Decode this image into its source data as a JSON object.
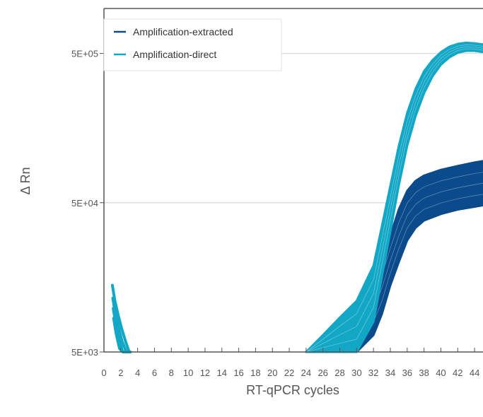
{
  "chart_data": {
    "type": "line",
    "title": "",
    "xlabel": "RT-qPCR cycles",
    "ylabel": "Δ Rn",
    "x_ticks": [
      0,
      2,
      4,
      6,
      8,
      10,
      12,
      14,
      16,
      18,
      20,
      22,
      24,
      26,
      28,
      30,
      32,
      34,
      36,
      38,
      40,
      42,
      44
    ],
    "x_tick_labels": [
      "0",
      "2",
      "4",
      "6",
      "8",
      "10",
      "12",
      "14",
      "16",
      "18",
      "20",
      "22",
      "24",
      "26",
      "28",
      "30",
      "32",
      "34",
      "36",
      "38",
      "40",
      "42",
      "44"
    ],
    "xlim": [
      0,
      45
    ],
    "y_scale": "log",
    "y_ticks": [
      5000,
      50000,
      500000
    ],
    "y_tick_labels": [
      "5E+03",
      "5E+04",
      "5E+05"
    ],
    "ylim": [
      5000,
      1000000
    ],
    "grid": "horizontal",
    "legend_position": "top-left",
    "series": [
      {
        "name": "Amplification-extracted",
        "color": "#0b4a8b",
        "x": [
          24,
          26,
          28,
          30,
          32,
          33,
          34,
          35,
          36,
          37,
          38,
          40,
          42,
          44,
          45
        ],
        "y_low": [
          5000,
          5000,
          5000,
          5000,
          6500,
          9000,
          14000,
          20000,
          28000,
          34000,
          38000,
          42000,
          45000,
          47000,
          48000
        ],
        "y_high": [
          5000,
          6200,
          7800,
          10000,
          14500,
          20000,
          30000,
          45000,
          60000,
          70000,
          76000,
          83000,
          88000,
          93000,
          95000
        ]
      },
      {
        "name": "Amplification-direct",
        "color": "#13a7c6",
        "x": [
          24,
          26,
          28,
          30,
          32,
          33,
          34,
          35,
          36,
          37,
          38,
          39,
          40,
          41,
          42,
          43,
          44,
          45
        ],
        "y_low": [
          5000,
          5000,
          5000,
          5000,
          8000,
          16000,
          32000,
          65000,
          120000,
          190000,
          270000,
          350000,
          420000,
          470000,
          505000,
          520000,
          520000,
          510000
        ],
        "y_high": [
          5000,
          6500,
          8500,
          11000,
          19000,
          35000,
          65000,
          120000,
          200000,
          290000,
          380000,
          450000,
          510000,
          555000,
          580000,
          590000,
          585000,
          575000
        ],
        "early_x": [
          1.0,
          1.3,
          1.7,
          2.1,
          2.6,
          3.0
        ],
        "early_y": [
          14000,
          11000,
          8800,
          7200,
          5800,
          5000
        ]
      }
    ]
  }
}
